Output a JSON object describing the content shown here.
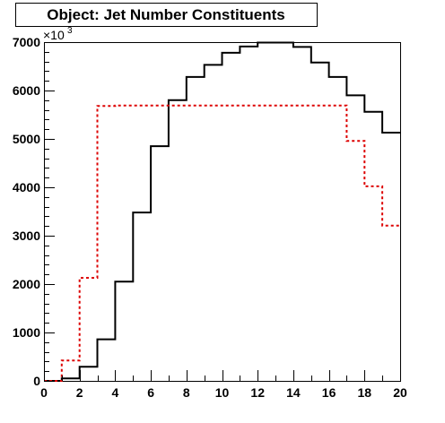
{
  "chart_data": {
    "type": "line",
    "title": "Object: Jet Number Constituents",
    "xlabel": "",
    "ylabel": "",
    "y_multiplier_label": "×10",
    "y_multiplier_exponent": "3",
    "xlim": [
      0,
      20
    ],
    "ylim": [
      0,
      7000
    ],
    "x_ticks": [
      "0",
      "2",
      "4",
      "6",
      "8",
      "10",
      "12",
      "14",
      "16",
      "18",
      "20"
    ],
    "y_ticks": [
      "0",
      "1000",
      "2000",
      "3000",
      "4000",
      "5000",
      "6000",
      "7000"
    ],
    "grid": false,
    "bin_edges": [
      0,
      1,
      2,
      3,
      4,
      5,
      6,
      7,
      8,
      9,
      10,
      11,
      12,
      13,
      14,
      15,
      16,
      17,
      18,
      19,
      20
    ],
    "series": [
      {
        "color": "#000000",
        "style": "solid",
        "values": [
          0,
          50,
          290,
          860,
          2050,
          3480,
          4850,
          5800,
          6280,
          6530,
          6780,
          6910,
          6990,
          6990,
          6900,
          6580,
          6280,
          5900,
          5560,
          5130
        ]
      },
      {
        "color": "#dd0000",
        "style": "dotted",
        "values": [
          0,
          420,
          2130,
          5680,
          5690,
          5690,
          5690,
          5690,
          5690,
          5690,
          5690,
          5690,
          5690,
          5690,
          5690,
          5690,
          5690,
          4960,
          4020,
          3210
        ]
      }
    ]
  }
}
